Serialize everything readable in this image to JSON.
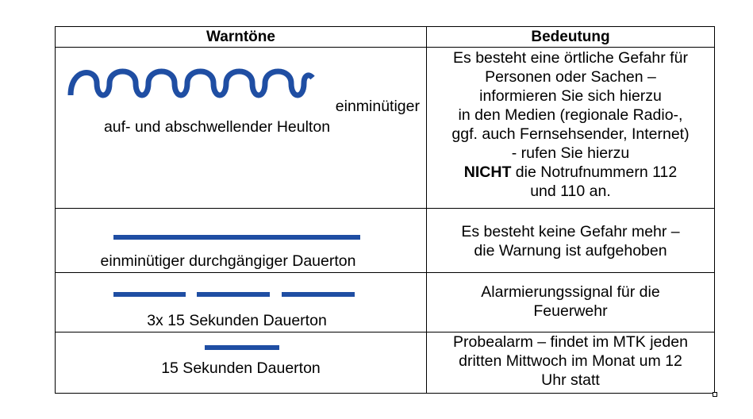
{
  "table": {
    "header_left": "Warntöne",
    "header_right": "Bedeutung",
    "rows": [
      {
        "signal_label_line1": "einminütiger",
        "signal_label_line2": "auf- und abschwellender Heulton",
        "meaning_lines": [
          "Es besteht eine örtliche Gefahr für",
          "Personen oder Sachen –",
          "informieren Sie sich hierzu",
          "in den Medien (regionale Radio-,",
          "ggf. auch Fernsehsender, Internet)",
          "- rufen Sie hierzu"
        ],
        "meaning_bold": "NICHT",
        "meaning_after_bold": " die Notrufnummern 112",
        "meaning_last": "und 110 an."
      },
      {
        "signal_label": "einminütiger durchgängiger Dauerton",
        "meaning_lines": [
          "Es besteht keine Gefahr mehr –",
          "die Warnung ist aufgehoben"
        ]
      },
      {
        "signal_label": "3x 15 Sekunden Dauerton",
        "meaning_lines": [
          "Alarmierungssignal für die",
          "Feuerwehr"
        ]
      },
      {
        "signal_label": "15 Sekunden Dauerton",
        "meaning_lines": [
          "Probealarm – findet im MTK jeden",
          "dritten Mittwoch im Monat um 12",
          "Uhr statt"
        ]
      }
    ]
  },
  "colors": {
    "signal_blue": "#1f4ea3",
    "border": "#000000"
  },
  "icons": [
    "wave-signal-icon",
    "continuous-tone-icon",
    "three-short-tones-icon",
    "short-tone-icon"
  ]
}
